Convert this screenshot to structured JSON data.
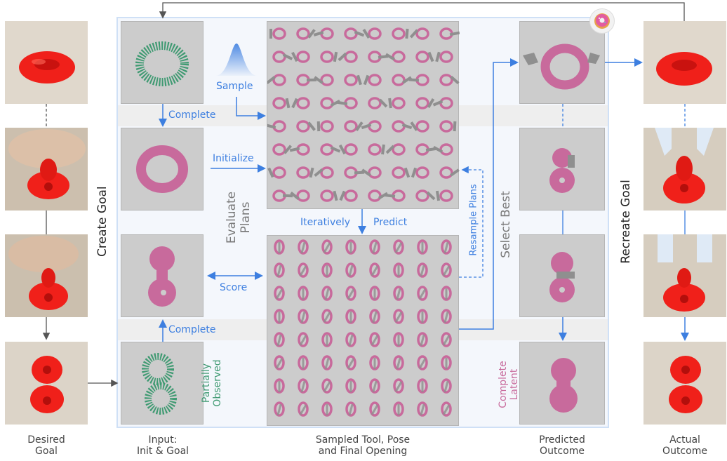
{
  "labels": {
    "create_goal": "Create Goal",
    "recreate_goal": "Recreate Goal",
    "complete_1": "Complete",
    "complete_2": "Complete",
    "initialize": "Initialize",
    "sample": "Sample",
    "evaluate_plans": "Evaluate\nPlans",
    "iteratively": "Iteratively",
    "predict": "Predict",
    "resample_plans": "Resample Plans",
    "score": "Score",
    "select_best": "Select Best",
    "partially_observed": "Partially\nObserved",
    "complete_latent": "Complete\nLatent"
  },
  "captions": {
    "desired_goal": "Desired\nGoal",
    "input": "Input:\nInit & Goal",
    "sampled": "Sampled Tool, Pose\nand Final Opening",
    "predicted": "Predicted\nOutcome",
    "actual": "Actual\nOutcome"
  },
  "colors": {
    "blue": "#3d7fe0",
    "pink": "#c86a9c",
    "green": "#3f9a72",
    "red": "#f0201a",
    "panel": "#cccccc",
    "frame": "#e7f0fb"
  },
  "icons": [
    "donut-icon",
    "gaussian-curve-icon"
  ]
}
